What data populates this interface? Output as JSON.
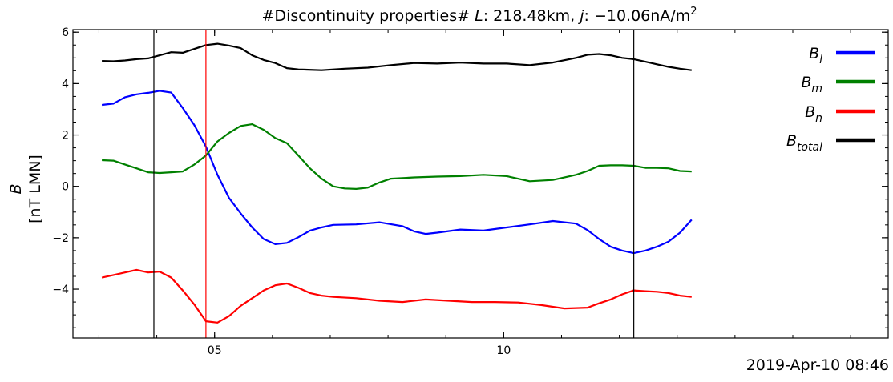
{
  "chart_data": {
    "type": "line",
    "title": "#Discontinuity properties# L: 218.48km, j: −10.06nA/m²",
    "title_parts": {
      "prefix": "#Discontinuity properties# ",
      "L_symbol": "L",
      "L_value": ": 218.48km, ",
      "j_symbol": "j",
      "j_value": ": −10.06nA/m",
      "j_exponent": "2"
    },
    "ylabel": {
      "symbol": "B",
      "unit": "[nT LMN]"
    },
    "xlabel": "",
    "corner_label": "2019-Apr-10 08:46",
    "x_unit": "minutes after 08:46 (2019-Apr-10)",
    "xlim": [
      2.55,
      16.65
    ],
    "ylim": [
      -5.9,
      6.1
    ],
    "x_ticks": [
      {
        "value": 5,
        "label": "05"
      },
      {
        "value": 10,
        "label": "10"
      }
    ],
    "y_ticks": [
      -4,
      -2,
      0,
      2,
      4,
      6
    ],
    "y_tick_labels": [
      "−4",
      "−2",
      "0",
      "2",
      "4",
      "6"
    ],
    "vertical_lines": [
      {
        "x": 3.95,
        "color": "#000000"
      },
      {
        "x": 4.85,
        "color": "#ff0000"
      },
      {
        "x": 12.25,
        "color": "#000000"
      }
    ],
    "legend_position": "right",
    "grid": false,
    "series": [
      {
        "name": "B_l",
        "label_main": "B",
        "label_sub": "l",
        "color": "#0000ff",
        "points": [
          [
            3.05,
            3.17
          ],
          [
            3.25,
            3.22
          ],
          [
            3.45,
            3.47
          ],
          [
            3.65,
            3.58
          ],
          [
            3.85,
            3.64
          ],
          [
            4.05,
            3.72
          ],
          [
            4.25,
            3.65
          ],
          [
            4.45,
            3.05
          ],
          [
            4.65,
            2.38
          ],
          [
            4.85,
            1.55
          ],
          [
            5.05,
            0.45
          ],
          [
            5.25,
            -0.45
          ],
          [
            5.45,
            -1.05
          ],
          [
            5.65,
            -1.6
          ],
          [
            5.85,
            -2.05
          ],
          [
            6.05,
            -2.25
          ],
          [
            6.25,
            -2.2
          ],
          [
            6.45,
            -1.98
          ],
          [
            6.65,
            -1.72
          ],
          [
            6.85,
            -1.6
          ],
          [
            7.05,
            -1.5
          ],
          [
            7.45,
            -1.48
          ],
          [
            7.85,
            -1.4
          ],
          [
            8.25,
            -1.55
          ],
          [
            8.45,
            -1.75
          ],
          [
            8.65,
            -1.85
          ],
          [
            8.85,
            -1.8
          ],
          [
            9.25,
            -1.68
          ],
          [
            9.65,
            -1.72
          ],
          [
            10.05,
            -1.6
          ],
          [
            10.45,
            -1.48
          ],
          [
            10.85,
            -1.35
          ],
          [
            11.25,
            -1.45
          ],
          [
            11.45,
            -1.7
          ],
          [
            11.65,
            -2.05
          ],
          [
            11.85,
            -2.35
          ],
          [
            12.05,
            -2.5
          ],
          [
            12.25,
            -2.6
          ],
          [
            12.45,
            -2.5
          ],
          [
            12.65,
            -2.35
          ],
          [
            12.85,
            -2.15
          ],
          [
            13.05,
            -1.8
          ],
          [
            13.25,
            -1.3
          ]
        ]
      },
      {
        "name": "B_m",
        "label_main": "B",
        "label_sub": "m",
        "color": "#008000",
        "points": [
          [
            3.05,
            1.02
          ],
          [
            3.25,
            1.0
          ],
          [
            3.45,
            0.85
          ],
          [
            3.65,
            0.7
          ],
          [
            3.85,
            0.55
          ],
          [
            4.05,
            0.52
          ],
          [
            4.25,
            0.55
          ],
          [
            4.45,
            0.58
          ],
          [
            4.65,
            0.85
          ],
          [
            4.85,
            1.2
          ],
          [
            5.05,
            1.75
          ],
          [
            5.25,
            2.08
          ],
          [
            5.45,
            2.35
          ],
          [
            5.65,
            2.42
          ],
          [
            5.85,
            2.2
          ],
          [
            6.05,
            1.88
          ],
          [
            6.25,
            1.68
          ],
          [
            6.45,
            1.2
          ],
          [
            6.65,
            0.7
          ],
          [
            6.85,
            0.3
          ],
          [
            7.05,
            0.0
          ],
          [
            7.25,
            -0.08
          ],
          [
            7.45,
            -0.1
          ],
          [
            7.65,
            -0.05
          ],
          [
            7.85,
            0.15
          ],
          [
            8.05,
            0.3
          ],
          [
            8.45,
            0.35
          ],
          [
            8.85,
            0.38
          ],
          [
            9.25,
            0.4
          ],
          [
            9.65,
            0.45
          ],
          [
            10.05,
            0.4
          ],
          [
            10.45,
            0.2
          ],
          [
            10.85,
            0.25
          ],
          [
            11.25,
            0.45
          ],
          [
            11.45,
            0.6
          ],
          [
            11.65,
            0.8
          ],
          [
            11.85,
            0.82
          ],
          [
            12.05,
            0.82
          ],
          [
            12.25,
            0.8
          ],
          [
            12.45,
            0.72
          ],
          [
            12.65,
            0.72
          ],
          [
            12.85,
            0.7
          ],
          [
            13.05,
            0.6
          ],
          [
            13.25,
            0.58
          ]
        ]
      },
      {
        "name": "B_n",
        "label_main": "B",
        "label_sub": "n",
        "color": "#ff0000",
        "points": [
          [
            3.05,
            -3.55
          ],
          [
            3.25,
            -3.45
          ],
          [
            3.45,
            -3.35
          ],
          [
            3.65,
            -3.25
          ],
          [
            3.85,
            -3.35
          ],
          [
            4.05,
            -3.32
          ],
          [
            4.25,
            -3.55
          ],
          [
            4.45,
            -4.05
          ],
          [
            4.65,
            -4.6
          ],
          [
            4.85,
            -5.25
          ],
          [
            5.05,
            -5.3
          ],
          [
            5.25,
            -5.05
          ],
          [
            5.45,
            -4.65
          ],
          [
            5.65,
            -4.35
          ],
          [
            5.85,
            -4.05
          ],
          [
            6.05,
            -3.85
          ],
          [
            6.25,
            -3.78
          ],
          [
            6.45,
            -3.95
          ],
          [
            6.65,
            -4.15
          ],
          [
            6.85,
            -4.25
          ],
          [
            7.05,
            -4.3
          ],
          [
            7.45,
            -4.35
          ],
          [
            7.85,
            -4.45
          ],
          [
            8.25,
            -4.5
          ],
          [
            8.65,
            -4.4
          ],
          [
            9.05,
            -4.45
          ],
          [
            9.45,
            -4.5
          ],
          [
            9.85,
            -4.5
          ],
          [
            10.25,
            -4.52
          ],
          [
            10.65,
            -4.62
          ],
          [
            11.05,
            -4.75
          ],
          [
            11.45,
            -4.72
          ],
          [
            11.65,
            -4.55
          ],
          [
            11.85,
            -4.4
          ],
          [
            12.05,
            -4.2
          ],
          [
            12.25,
            -4.05
          ],
          [
            12.45,
            -4.08
          ],
          [
            12.65,
            -4.1
          ],
          [
            12.85,
            -4.15
          ],
          [
            13.05,
            -4.25
          ],
          [
            13.25,
            -4.3
          ]
        ]
      },
      {
        "name": "B_total",
        "label_main": "B",
        "label_sub": "total",
        "color": "#000000",
        "points": [
          [
            3.05,
            4.88
          ],
          [
            3.25,
            4.87
          ],
          [
            3.45,
            4.9
          ],
          [
            3.65,
            4.95
          ],
          [
            3.85,
            4.98
          ],
          [
            4.05,
            5.1
          ],
          [
            4.25,
            5.22
          ],
          [
            4.45,
            5.2
          ],
          [
            4.65,
            5.35
          ],
          [
            4.85,
            5.5
          ],
          [
            5.05,
            5.55
          ],
          [
            5.25,
            5.48
          ],
          [
            5.45,
            5.38
          ],
          [
            5.65,
            5.1
          ],
          [
            5.85,
            4.92
          ],
          [
            6.05,
            4.8
          ],
          [
            6.25,
            4.6
          ],
          [
            6.45,
            4.55
          ],
          [
            6.85,
            4.52
          ],
          [
            7.25,
            4.58
          ],
          [
            7.65,
            4.62
          ],
          [
            8.05,
            4.72
          ],
          [
            8.45,
            4.8
          ],
          [
            8.85,
            4.78
          ],
          [
            9.25,
            4.82
          ],
          [
            9.65,
            4.78
          ],
          [
            10.05,
            4.78
          ],
          [
            10.45,
            4.72
          ],
          [
            10.85,
            4.82
          ],
          [
            11.25,
            5.0
          ],
          [
            11.45,
            5.12
          ],
          [
            11.65,
            5.15
          ],
          [
            11.85,
            5.1
          ],
          [
            12.05,
            5.0
          ],
          [
            12.25,
            4.95
          ],
          [
            12.45,
            4.85
          ],
          [
            12.65,
            4.75
          ],
          [
            12.85,
            4.65
          ],
          [
            13.05,
            4.58
          ],
          [
            13.25,
            4.52
          ]
        ]
      }
    ]
  }
}
